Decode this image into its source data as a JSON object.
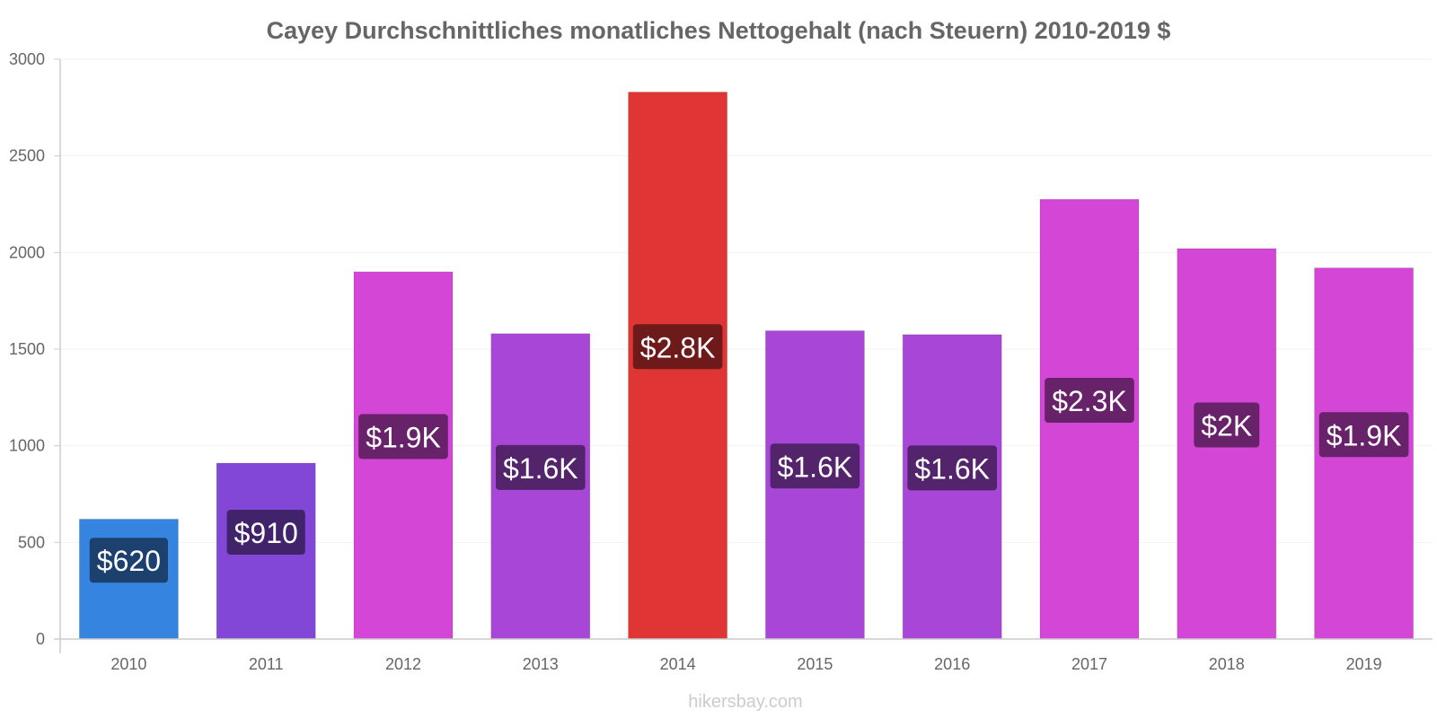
{
  "chart_data": {
    "type": "bar",
    "title": "Cayey Durchschnittliches monatliches Nettogehalt (nach Steuern) 2010-2019 $",
    "xlabel": "",
    "ylabel": "",
    "ylim": [
      0,
      3000
    ],
    "yticks": [
      0,
      500,
      1000,
      1500,
      2000,
      2500,
      3000
    ],
    "categories": [
      "2010",
      "2011",
      "2012",
      "2013",
      "2014",
      "2015",
      "2016",
      "2017",
      "2018",
      "2019"
    ],
    "values": [
      620,
      910,
      1900,
      1580,
      2830,
      1595,
      1575,
      2275,
      2020,
      1920
    ],
    "data_labels": [
      "$620",
      "$910",
      "$1.9K",
      "$1.6K",
      "$2.8K",
      "$1.6K",
      "$1.6K",
      "$2.3K",
      "$2K",
      "$1.9K"
    ],
    "bar_colors": [
      "#3584e0",
      "#8347d8",
      "#d346d6",
      "#a846d8",
      "#e03535",
      "#a846d8",
      "#a846d8",
      "#d346d6",
      "#d346d6",
      "#d346d6"
    ],
    "label_colors": [
      "#1c416e",
      "#40236b",
      "#68226a",
      "#53236b",
      "#6e1a1a",
      "#53236b",
      "#53236b",
      "#68226a",
      "#68226a",
      "#68226a"
    ],
    "grid": true
  },
  "credit": "hikersbay.com"
}
